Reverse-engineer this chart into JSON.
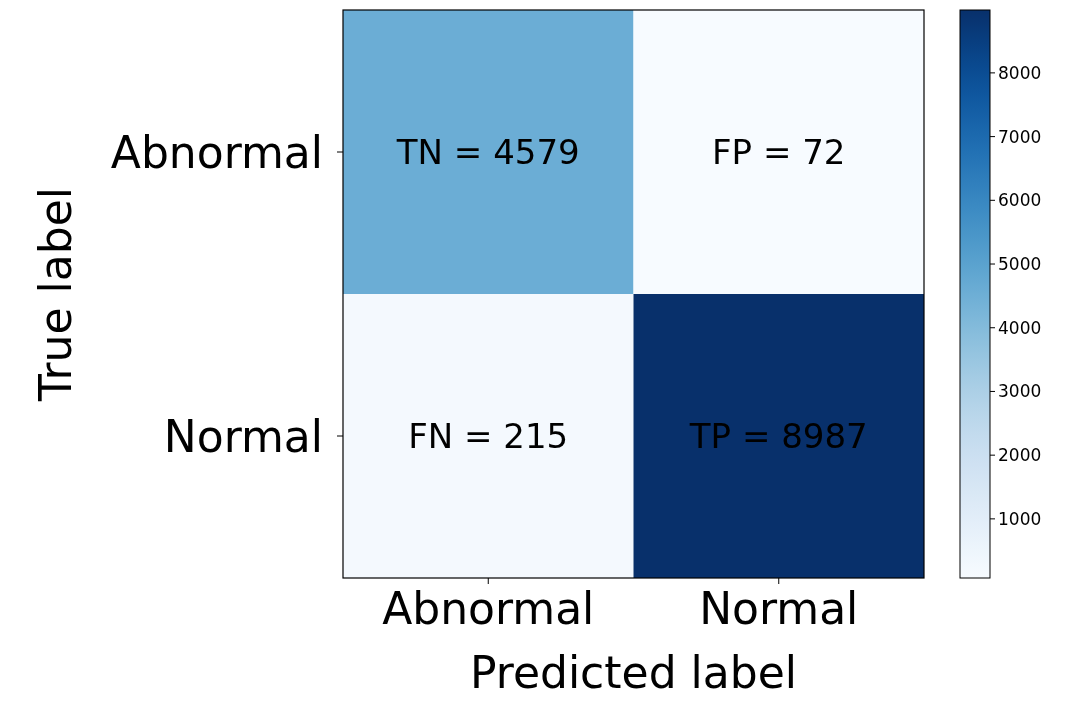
{
  "chart_data": {
    "type": "heatmap",
    "xlabel": "Predicted label",
    "ylabel": "True label",
    "categories": [
      "Abnormal",
      "Normal"
    ],
    "y_categories": [
      "Abnormal",
      "Normal"
    ],
    "cells": [
      [
        4579,
        72
      ],
      [
        215,
        8987
      ]
    ],
    "cell_labels": [
      [
        "TN = 4579",
        "FP = 72"
      ],
      [
        "FN = 215",
        "TP = 8987"
      ]
    ],
    "clim": [
      72,
      8987
    ],
    "cticks": [
      1000,
      2000,
      3000,
      4000,
      5000,
      6000,
      7000,
      8000
    ]
  }
}
